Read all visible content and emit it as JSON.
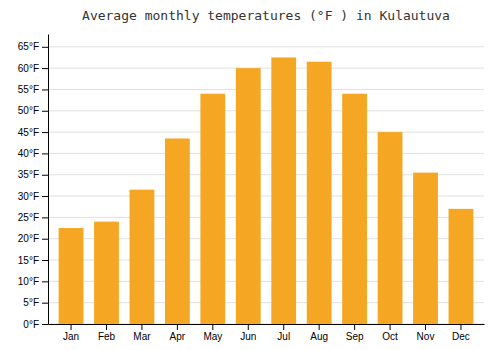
{
  "chart_data": {
    "type": "bar",
    "title": "Average monthly temperatures (°F ) in Kulautuva",
    "categories": [
      "Jan",
      "Feb",
      "Mar",
      "Apr",
      "May",
      "Jun",
      "Jul",
      "Aug",
      "Sep",
      "Oct",
      "Nov",
      "Dec"
    ],
    "values": [
      22.5,
      24.0,
      31.5,
      43.5,
      54.0,
      60.0,
      62.5,
      61.5,
      54.0,
      45.0,
      35.5,
      27.0
    ],
    "color": "#F5A623",
    "ylim": [
      0,
      68
    ],
    "yticks": [
      {
        "value": 0,
        "label": "0°F"
      },
      {
        "value": 5,
        "label": "5°F"
      },
      {
        "value": 10,
        "label": "10°F"
      },
      {
        "value": 15,
        "label": "15°F"
      },
      {
        "value": 20,
        "label": "20°F"
      },
      {
        "value": 25,
        "label": "25°F"
      },
      {
        "value": 30,
        "label": "30°F"
      },
      {
        "value": 35,
        "label": "35°F"
      },
      {
        "value": 40,
        "label": "40°F"
      },
      {
        "value": 45,
        "label": "45°F"
      },
      {
        "value": 50,
        "label": "50°F"
      },
      {
        "value": 55,
        "label": "55°F"
      },
      {
        "value": 60,
        "label": "60°F"
      },
      {
        "value": 65,
        "label": "65°F"
      }
    ],
    "grid": true
  }
}
